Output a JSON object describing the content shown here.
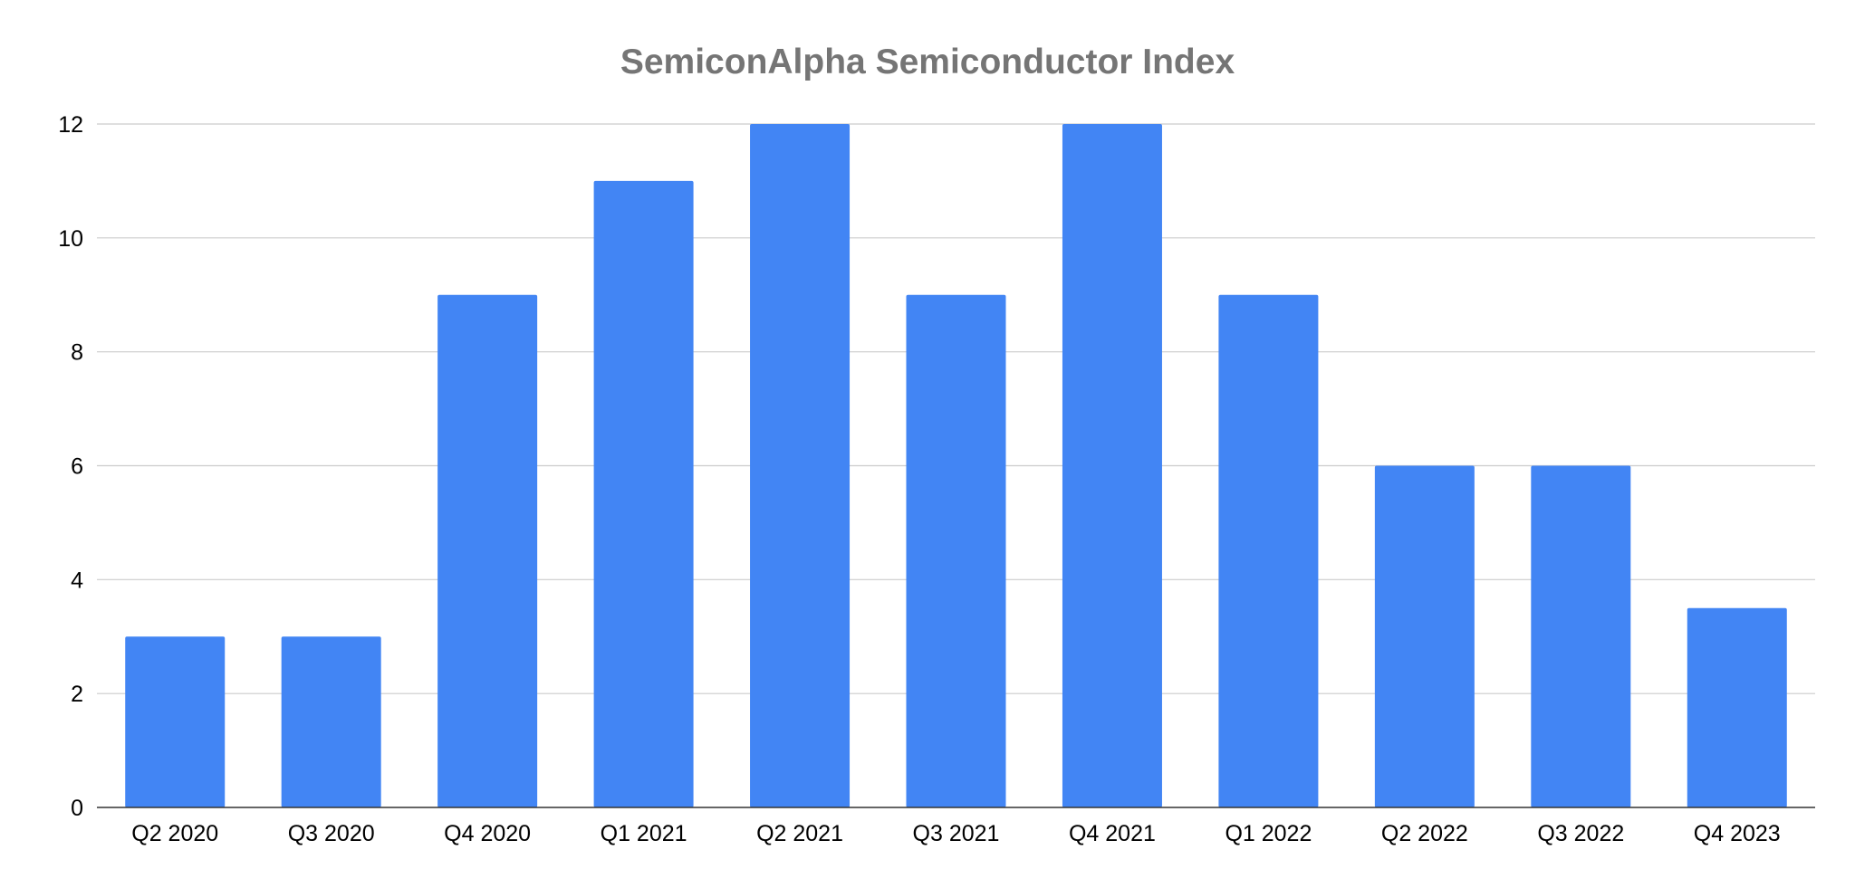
{
  "chart_data": {
    "type": "bar",
    "title": "SemiconAlpha Semiconductor Index",
    "xlabel": "",
    "ylabel": "",
    "categories": [
      "Q2 2020",
      "Q3 2020",
      "Q4 2020",
      "Q1 2021",
      "Q2 2021",
      "Q3 2021",
      "Q4 2021",
      "Q1 2022",
      "Q2 2022",
      "Q3 2022",
      "Q4 2023"
    ],
    "values": [
      3,
      3,
      9,
      11,
      12,
      9,
      12,
      9,
      6,
      6,
      3.5
    ],
    "ylim": [
      0,
      12
    ],
    "yticks": [
      "0",
      "2",
      "4",
      "6",
      "8",
      "10",
      "12"
    ],
    "grid": true,
    "legend": "none",
    "colors": {
      "bar": "#4285f4",
      "title": "#757575",
      "grid": "#cccccc",
      "axis": "#333333"
    }
  }
}
